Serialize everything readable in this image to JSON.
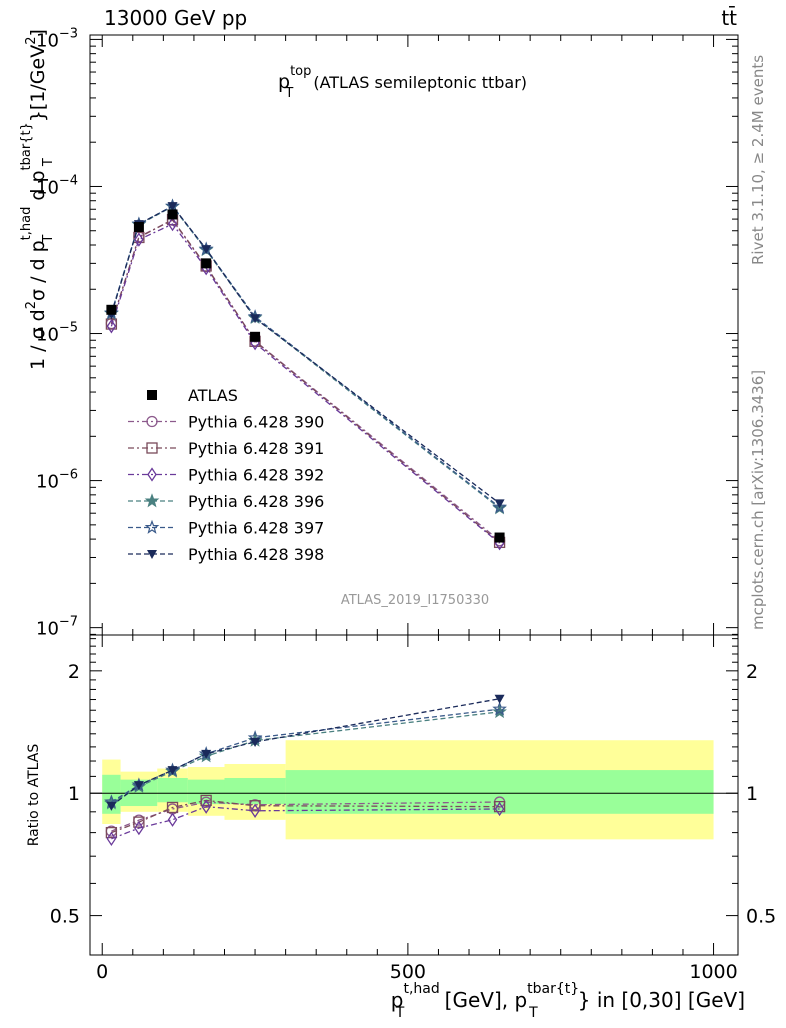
{
  "header": {
    "left": "13000 GeV pp",
    "right": "tt̄"
  },
  "side_labels": {
    "right_top": "Rivet 3.1.10, ≥ 2.4M events",
    "right_bottom": "mcplots.cern.ch [arXiv:1306.3436]"
  },
  "chart_data": {
    "type": "line",
    "title": {
      "base": "p",
      "sup": "top",
      "sub": "T",
      "rest": "(ATLAS semileptonic ttbar)"
    },
    "analysis_label": "ATLAS_2019_I1750330",
    "ylabel": {
      "a": "1 / σ d",
      "a_sup": "2",
      "b": "σ / d p",
      "b_sub": "T",
      "b_sup": "t,had",
      "c": " d p",
      "c_sub": "T",
      "c_sup": "tbar{t}",
      "d": "}[1/GeV",
      "d_sup": "2",
      "e": "]"
    },
    "xlabel": {
      "a": "p",
      "a_sub": "T",
      "a_sup": "t,had",
      "b": " [GeV], p",
      "b_sub": "T",
      "b_sup": "tbar{t}",
      "c": "} in [0,30] [GeV]"
    },
    "ratio_ylabel": "Ratio to ATLAS",
    "x_range": [
      -20,
      1040
    ],
    "y_range_log": [
      -7.05,
      -2.97
    ],
    "ratio_range": [
      0.4,
      2.45
    ],
    "y_scale": "log",
    "x_ticks": [
      0,
      500,
      1000
    ],
    "y_tick_labels": [
      {
        "exp": -3,
        "base": "10",
        "sup": "−3"
      },
      {
        "exp": -4,
        "base": "10",
        "sup": "−4"
      },
      {
        "exp": -5,
        "base": "10",
        "sup": "−5"
      },
      {
        "exp": -6,
        "base": "10",
        "sup": "−6"
      },
      {
        "exp": -7,
        "base": "10",
        "sup": "−7"
      }
    ],
    "ratio_tick_labels": [
      {
        "value": 0.5,
        "label": "0.5"
      },
      {
        "value": 1,
        "label": "1"
      },
      {
        "value": 2,
        "label": "2"
      }
    ],
    "bins": [
      {
        "lo": 0,
        "hi": 30,
        "x": 15,
        "data": 1.45e-05,
        "band_inner": [
          0.89,
          1.11
        ],
        "band_outer": [
          0.84,
          1.21
        ]
      },
      {
        "lo": 30,
        "hi": 90,
        "x": 60,
        "data": 5.3e-05,
        "band_inner": [
          0.93,
          1.08
        ],
        "band_outer": [
          0.9,
          1.13
        ]
      },
      {
        "lo": 90,
        "hi": 140,
        "x": 115,
        "data": 6.45e-05,
        "band_inner": [
          0.95,
          1.09
        ],
        "band_outer": [
          0.9,
          1.15
        ]
      },
      {
        "lo": 140,
        "hi": 200,
        "x": 170,
        "data": 3e-05,
        "band_inner": [
          0.94,
          1.08
        ],
        "band_outer": [
          0.88,
          1.16
        ]
      },
      {
        "lo": 200,
        "hi": 300,
        "x": 250,
        "data": 9.5e-06,
        "band_inner": [
          0.94,
          1.09
        ],
        "band_outer": [
          0.86,
          1.18
        ]
      },
      {
        "lo": 300,
        "hi": 1000,
        "x": 650,
        "data": 4.1e-07,
        "band_inner": [
          0.89,
          1.14
        ],
        "band_outer": [
          0.77,
          1.35
        ]
      }
    ],
    "data_series": {
      "name": "ATLAS",
      "color": "#000000"
    },
    "series": [
      {
        "name": "Pythia 6.428 390",
        "marker": "circle",
        "color": "#8c5a8c",
        "dash": "6,3,2,3",
        "values": [
          1.17e-05,
          4.55e-05,
          5.9e-05,
          2.85e-05,
          8.9e-06,
          3.9e-07
        ]
      },
      {
        "name": "Pythia 6.428 391",
        "marker": "square",
        "color": "#7a4a5a",
        "dash": "6,3,2,3",
        "values": [
          1.16e-05,
          4.5e-05,
          5.95e-05,
          2.88e-05,
          8.85e-06,
          3.8e-07
        ]
      },
      {
        "name": "Pythia 6.428 392",
        "marker": "diamond",
        "color": "#6a3a9a",
        "dash": "6,3,2,3",
        "values": [
          1.12e-05,
          4.35e-05,
          5.55e-05,
          2.78e-05,
          8.6e-06,
          3.75e-07
        ]
      },
      {
        "name": "Pythia 6.428 396",
        "marker": "star-filled",
        "color": "#4a8080",
        "dash": "5,3",
        "values": [
          1.37e-05,
          5.5e-05,
          7.3e-05,
          3.7e-05,
          1.28e-05,
          6.5e-07
        ]
      },
      {
        "name": "Pythia 6.428 397",
        "marker": "star-open",
        "color": "#3a5a8a",
        "dash": "5,3",
        "values": [
          1.38e-05,
          5.55e-05,
          7.35e-05,
          3.75e-05,
          1.3e-05,
          6.6e-07
        ]
      },
      {
        "name": "Pythia 6.428 398",
        "marker": "triangle-down",
        "color": "#1a2a5a",
        "dash": "5,3",
        "values": [
          1.35e-05,
          5.55e-05,
          7.35e-05,
          3.75e-05,
          1.27e-05,
          7e-07
        ]
      }
    ]
  }
}
